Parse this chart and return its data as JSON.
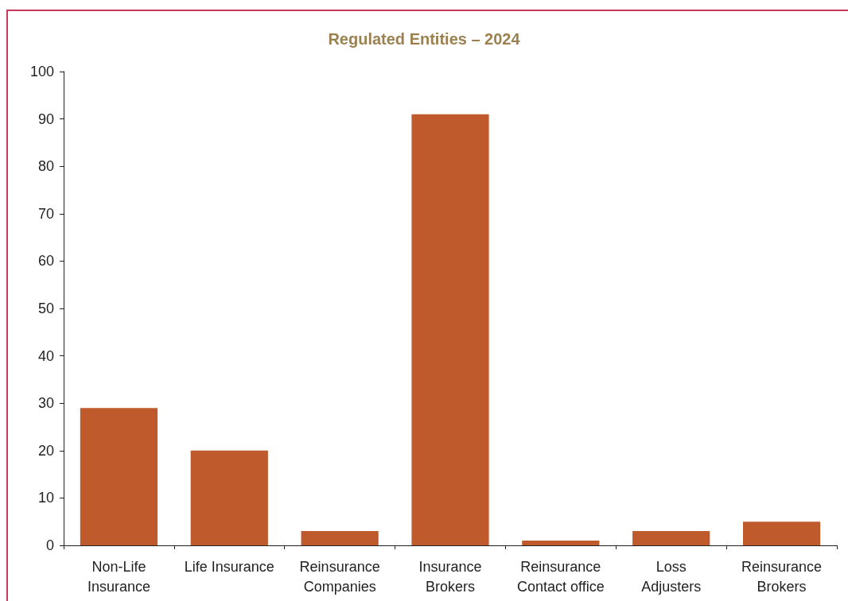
{
  "chart_data": {
    "type": "bar",
    "title": "Regulated Entities – 2024",
    "categories": [
      "Non-Life\nInsurance",
      "Life Insurance",
      "Reinsurance\nCompanies",
      "Insurance\nBrokers",
      "Reinsurance\nContact office",
      "Loss\nAdjusters",
      "Reinsurance\nBrokers"
    ],
    "values": [
      29,
      20,
      3,
      91,
      1,
      3,
      5
    ],
    "color": "#bf5a2c",
    "ylim": [
      0,
      100
    ],
    "yticks": [
      0,
      10,
      20,
      30,
      40,
      50,
      60,
      70,
      80,
      90,
      100
    ],
    "grid": false
  }
}
